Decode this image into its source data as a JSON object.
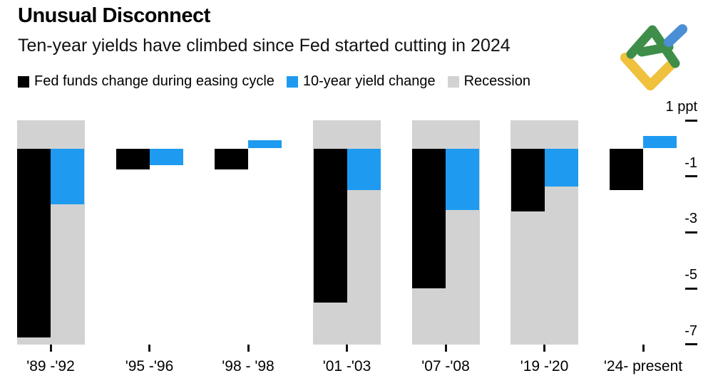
{
  "header": {
    "title": "Unusual Disconnect",
    "subtitle": "Ten-year yields have climbed since Fed started cutting in 2024"
  },
  "legend": {
    "items": [
      {
        "label": "Fed funds change during easing cycle",
        "color": "#000000"
      },
      {
        "label": "10-year yield change",
        "color": "#1E9BF0"
      },
      {
        "label": "Recession",
        "color": "#D2D2D2"
      }
    ]
  },
  "logo": {
    "name": "litefinance-logo",
    "colors": {
      "green": "#3E8E49",
      "yellow": "#EFC13C",
      "blue": "#4A8FD5"
    }
  },
  "chart_data": {
    "type": "bar",
    "title": "Unusual Disconnect",
    "subtitle": "Ten-year yields have climbed since Fed started cutting in 2024",
    "categories": [
      "'89 -'92",
      "'95 -'96",
      "'98 - '98",
      "'01 -'03",
      "'07 -'08",
      "'19 -'20",
      "'24- present"
    ],
    "series": [
      {
        "name": "Fed funds change during easing cycle",
        "color": "#000000",
        "values": [
          -6.75,
          -0.75,
          -0.75,
          -5.5,
          -5.0,
          -2.25,
          -1.5
        ]
      },
      {
        "name": "10-year yield change",
        "color": "#1E9BF0",
        "values": [
          -2.0,
          -0.6,
          0.3,
          -1.5,
          -2.2,
          -1.35,
          0.45
        ]
      }
    ],
    "recession": [
      true,
      false,
      false,
      true,
      true,
      true,
      false
    ],
    "recession_color": "#D2D2D2",
    "unit": "ppt",
    "y_axis": {
      "ticks": [
        1,
        -1,
        -3,
        -5,
        -7
      ],
      "tick_labels": [
        "1 ppt",
        "-1",
        "-3",
        "-5",
        "-7"
      ],
      "range": [
        1,
        -7
      ]
    },
    "grid": false,
    "legend_position": "top"
  }
}
